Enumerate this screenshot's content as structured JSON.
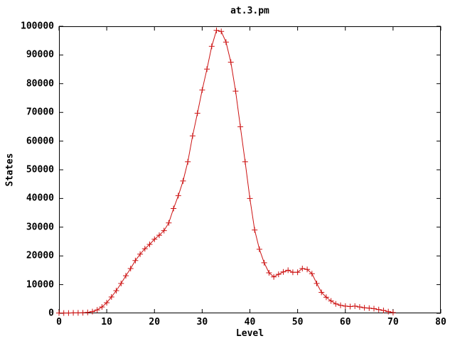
{
  "title": "at.3.pm",
  "colors": {
    "line": "#cc1111",
    "axis": "#000000",
    "background": "#ffffff",
    "text": "#000000"
  },
  "chart_data": {
    "type": "line",
    "title": "at.3.pm",
    "xlabel": "Level",
    "ylabel": "States",
    "xlim": [
      0,
      80
    ],
    "ylim": [
      0,
      100000
    ],
    "x_ticks": [
      0,
      10,
      20,
      30,
      40,
      50,
      60,
      70,
      80
    ],
    "y_ticks": [
      0,
      10000,
      20000,
      30000,
      40000,
      50000,
      60000,
      70000,
      80000,
      90000,
      100000
    ],
    "grid": false,
    "legend": "none",
    "marker": "plus",
    "series": [
      {
        "name": "at.3.pm",
        "x": [
          0,
          1,
          2,
          3,
          4,
          5,
          6,
          7,
          8,
          9,
          10,
          11,
          12,
          13,
          14,
          15,
          16,
          17,
          18,
          19,
          20,
          21,
          22,
          23,
          24,
          25,
          26,
          27,
          28,
          29,
          30,
          31,
          32,
          33,
          34,
          35,
          36,
          37,
          38,
          39,
          40,
          41,
          42,
          43,
          44,
          45,
          46,
          47,
          48,
          49,
          50,
          51,
          52,
          53,
          54,
          55,
          56,
          57,
          58,
          59,
          60,
          61,
          62,
          63,
          64,
          65,
          66,
          67,
          68,
          69,
          70
        ],
        "y": [
          100,
          100,
          100,
          150,
          150,
          200,
          300,
          600,
          1200,
          2200,
          3700,
          5700,
          7900,
          10400,
          13100,
          15600,
          18400,
          20600,
          22500,
          24000,
          25800,
          27200,
          28800,
          31500,
          36500,
          41000,
          46100,
          52800,
          61800,
          69700,
          77800,
          85100,
          93000,
          98600,
          98200,
          94500,
          87500,
          77400,
          65000,
          52800,
          40000,
          29000,
          22300,
          17600,
          14100,
          12700,
          13600,
          14400,
          15000,
          14300,
          14300,
          15600,
          15300,
          13800,
          10400,
          7300,
          5600,
          4300,
          3300,
          2800,
          2500,
          2350,
          2500,
          2200,
          1900,
          1800,
          1600,
          1300,
          1000,
          600,
          250
        ]
      }
    ]
  }
}
